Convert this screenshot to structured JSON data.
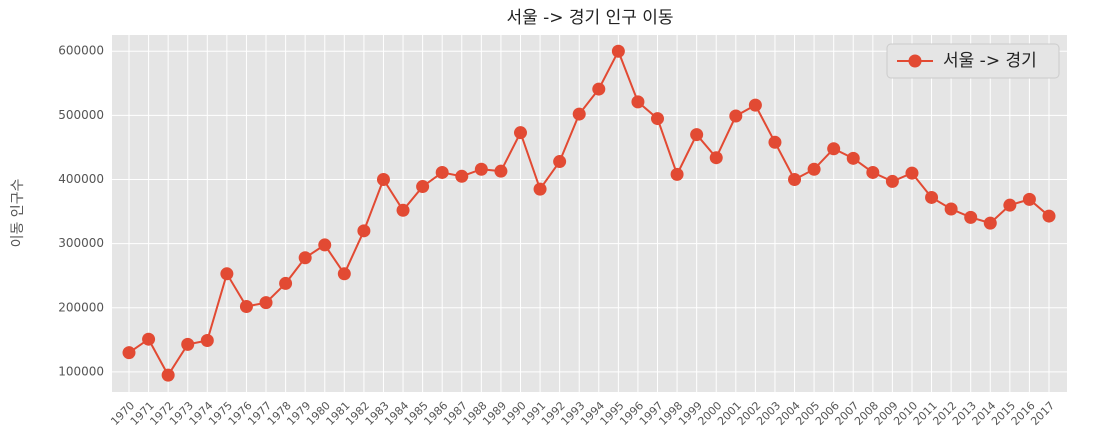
{
  "chart_data": {
    "type": "line",
    "title": "서울 -> 경기 인구 이동",
    "y_label": "이동 인구수",
    "categories": [
      "1970",
      "1971",
      "1972",
      "1973",
      "1974",
      "1975",
      "1976",
      "1977",
      "1978",
      "1979",
      "1980",
      "1981",
      "1982",
      "1983",
      "1984",
      "1985",
      "1986",
      "1987",
      "1988",
      "1989",
      "1990",
      "1991",
      "1992",
      "1993",
      "1994",
      "1995",
      "1996",
      "1997",
      "1998",
      "1999",
      "2000",
      "2001",
      "2002",
      "2003",
      "2004",
      "2005",
      "2006",
      "2007",
      "2008",
      "2009",
      "2010",
      "2011",
      "2012",
      "2013",
      "2014",
      "2015",
      "2016",
      "2017"
    ],
    "series": [
      {
        "name": "서울 -> 경기",
        "color": "#E24A33",
        "values": [
          130000,
          151000,
          95000,
          143000,
          149000,
          253000,
          202000,
          208000,
          238000,
          278000,
          298000,
          253000,
          320000,
          400000,
          352000,
          389000,
          411000,
          405000,
          416000,
          413000,
          473000,
          385000,
          428000,
          502000,
          541000,
          600000,
          521000,
          495000,
          408000,
          470000,
          434000,
          499000,
          516000,
          458000,
          400000,
          416000,
          448000,
          433000,
          411000,
          397000,
          410000,
          372000,
          354000,
          341000,
          332000,
          360000,
          369000,
          343000
        ]
      }
    ],
    "ylim": [
      68700,
      625300
    ],
    "yticks": [
      100000,
      200000,
      300000,
      400000,
      500000,
      600000
    ],
    "grid": true,
    "legend": "upper right"
  }
}
